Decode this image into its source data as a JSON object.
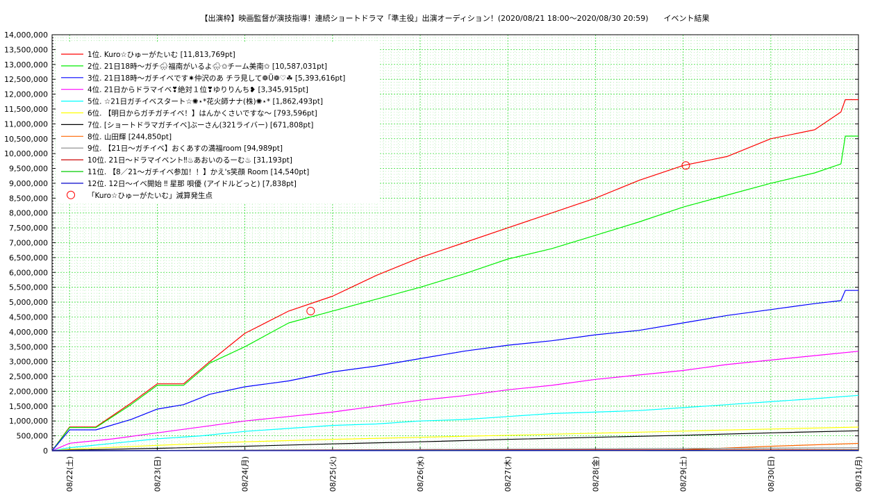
{
  "chart_data": {
    "type": "line",
    "title": "【出演枠】映画監督が演技指導！連続ショートドラマ「準主役」出演オーディション！(2020/08/21 18:00〜2020/08/30 20:59)　　イベント結果",
    "xlabel": "",
    "ylabel": "",
    "x_ticks": [
      "08/22(土)",
      "08/23(日)",
      "08/24(月)",
      "08/25(火)",
      "08/26(水)",
      "08/27(木)",
      "08/28(金)",
      "08/29(土)",
      "08/30(日)",
      "08/31(月)"
    ],
    "y_ticks": [
      "0",
      "500,000",
      "1,000,000",
      "1,500,000",
      "2,000,000",
      "2,500,000",
      "3,000,000",
      "3,500,000",
      "4,000,000",
      "4,500,000",
      "5,000,000",
      "5,500,000",
      "6,000,000",
      "6,500,000",
      "7,000,000",
      "7,500,000",
      "8,000,000",
      "8,500,000",
      "9,000,000",
      "9,500,000",
      "10,000,000",
      "10,500,000",
      "11,000,000",
      "11,500,000",
      "12,000,000",
      "12,500,000",
      "13,000,000",
      "13,500,000",
      "14,000,000"
    ],
    "xlim": [
      -0.2,
      9.0
    ],
    "ylim": [
      0,
      14000000
    ],
    "grid": true,
    "legend_position": "top-left",
    "series": [
      {
        "name": "1位. Kuro☆ひゅーがたいむ [11,813,769pt]",
        "color": "#ff0000",
        "x": [
          -0.2,
          0.0,
          0.3,
          0.7,
          1.0,
          1.3,
          1.6,
          2.0,
          2.5,
          3.0,
          3.5,
          4.0,
          4.5,
          5.0,
          5.5,
          6.0,
          6.5,
          7.0,
          7.5,
          8.0,
          8.5,
          8.8,
          8.85,
          9.0
        ],
        "y": [
          0,
          800000,
          800000,
          1600000,
          2250000,
          2250000,
          3000000,
          3950000,
          4700000,
          5200000,
          5900000,
          6500000,
          7000000,
          7500000,
          8000000,
          8500000,
          9100000,
          9600000,
          9900000,
          10500000,
          10800000,
          11400000,
          11813769,
          11813769
        ]
      },
      {
        "name": "2位. 21日18時〜ガチ🌧福南がいるよ🌧✩チーム美南✩ [10,587,031pt]",
        "color": "#00ee00",
        "x": [
          -0.2,
          0.0,
          0.3,
          0.7,
          1.0,
          1.3,
          1.6,
          2.0,
          2.5,
          3.0,
          3.5,
          4.0,
          4.5,
          5.0,
          5.5,
          6.0,
          6.5,
          7.0,
          7.5,
          8.0,
          8.5,
          8.8,
          8.85,
          9.0
        ],
        "y": [
          0,
          780000,
          780000,
          1550000,
          2200000,
          2200000,
          2950000,
          3500000,
          4300000,
          4700000,
          5100000,
          5500000,
          5950000,
          6450000,
          6800000,
          7250000,
          7700000,
          8200000,
          8600000,
          9000000,
          9350000,
          9650000,
          10587031,
          10587031
        ]
      },
      {
        "name": "3位. 21日18時〜ガチイベです✷仲沢のあ チラ見して❁Ü❁♡☘ [5,393,616pt]",
        "color": "#0000ff",
        "x": [
          -0.2,
          0.0,
          0.3,
          0.7,
          1.0,
          1.3,
          1.6,
          2.0,
          2.5,
          3.0,
          3.5,
          4.0,
          4.5,
          5.0,
          5.5,
          6.0,
          6.5,
          7.0,
          7.5,
          8.0,
          8.5,
          8.8,
          8.85,
          9.0
        ],
        "y": [
          0,
          700000,
          700000,
          1050000,
          1400000,
          1550000,
          1900000,
          2150000,
          2350000,
          2650000,
          2850000,
          3100000,
          3350000,
          3550000,
          3700000,
          3900000,
          4050000,
          4300000,
          4550000,
          4750000,
          4950000,
          5050000,
          5393616,
          5393616
        ]
      },
      {
        "name": "4位. 21日からドラマイベ❣絶対１位❣ゆりりんち❥ [3,345,915pt]",
        "color": "#ff00ff",
        "x": [
          -0.2,
          0.0,
          0.5,
          1.0,
          1.5,
          2.0,
          2.5,
          3.0,
          3.5,
          4.0,
          4.5,
          5.0,
          5.5,
          6.0,
          6.5,
          7.0,
          7.5,
          8.0,
          8.5,
          9.0
        ],
        "y": [
          0,
          250000,
          400000,
          600000,
          800000,
          1000000,
          1150000,
          1300000,
          1500000,
          1700000,
          1850000,
          2050000,
          2200000,
          2400000,
          2550000,
          2700000,
          2900000,
          3050000,
          3200000,
          3345915
        ]
      },
      {
        "name": "5位. ☆21日ガチイベスタート☆✺⋆*花火師ナナ(株)✺⋆* [1,862,493pt]",
        "color": "#00ffff",
        "x": [
          -0.2,
          0.0,
          0.5,
          1.0,
          1.5,
          2.0,
          2.5,
          3.0,
          3.5,
          4.0,
          4.5,
          5.0,
          5.5,
          6.0,
          6.5,
          7.0,
          7.5,
          8.0,
          8.5,
          9.0
        ],
        "y": [
          0,
          100000,
          250000,
          400000,
          500000,
          650000,
          750000,
          850000,
          900000,
          1000000,
          1050000,
          1150000,
          1250000,
          1300000,
          1350000,
          1450000,
          1550000,
          1650000,
          1750000,
          1862493
        ]
      },
      {
        "name": "6位. 【明日からガチガチイベ！】はんかくさいですな〜 [793,596pt]",
        "color": "#ffff00",
        "x": [
          -0.2,
          0.0,
          1.0,
          2.0,
          3.0,
          4.0,
          5.0,
          6.0,
          7.0,
          8.0,
          9.0
        ],
        "y": [
          0,
          50000,
          180000,
          300000,
          380000,
          450000,
          520000,
          590000,
          660000,
          730000,
          793596
        ]
      },
      {
        "name": "7位. [ショートドラマガチイベ]ぶーさん(321ライバー) [671,808pt]",
        "color": "#000000",
        "x": [
          -0.2,
          0.0,
          1.0,
          2.0,
          3.0,
          4.0,
          5.0,
          6.0,
          7.0,
          8.0,
          9.0
        ],
        "y": [
          0,
          20000,
          80000,
          150000,
          230000,
          300000,
          380000,
          450000,
          520000,
          600000,
          671808
        ]
      },
      {
        "name": "8位. 山田輝 [244,850pt]",
        "color": "#ff6600",
        "x": [
          -0.2,
          6.5,
          7.0,
          8.0,
          9.0
        ],
        "y": [
          0,
          10000,
          30000,
          150000,
          244850
        ]
      },
      {
        "name": "9位. 【21日〜ガチイベ】おくあすの満福room [94,989pt]",
        "color": "#888888",
        "x": [
          -0.2,
          3.0,
          6.0,
          9.0
        ],
        "y": [
          0,
          30000,
          60000,
          94989
        ]
      },
      {
        "name": "10位. 21日〜ドラマイベント‼︎♨あおいのるーむ♨ [31,193pt]",
        "color": "#cc0000",
        "x": [
          -0.2,
          3.0,
          6.0,
          9.0
        ],
        "y": [
          0,
          15000,
          25000,
          31193
        ]
      },
      {
        "name": "11位. 【8／21〜ガチイベ参加！！】かえ's笑顔 Room [14,540pt]",
        "color": "#00cc00",
        "x": [
          -0.2,
          3.0,
          6.0,
          9.0
        ],
        "y": [
          0,
          5000,
          10000,
          14540
        ]
      },
      {
        "name": "12位. 12日〜イベ開始 ‼︎ 星那 唄優 (アイドルどっと) [7,838pt]",
        "color": "#0000cc",
        "x": [
          -0.2,
          3.0,
          6.0,
          9.0
        ],
        "y": [
          0,
          3000,
          6000,
          7838
        ]
      }
    ],
    "markers": {
      "name": "「Kuro☆ひゅーがたいむ」減算発生点",
      "color": "#ff0000",
      "points": [
        {
          "x": 2.75,
          "y": 4700000
        },
        {
          "x": 7.03,
          "y": 9600000
        }
      ]
    }
  }
}
